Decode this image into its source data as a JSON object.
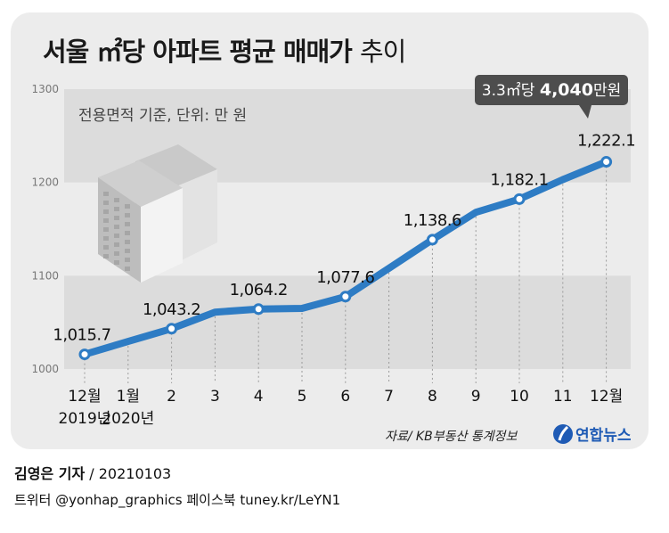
{
  "title": {
    "main": "서울 ㎡당 아파트 평균 매매가",
    "sub": "추이"
  },
  "note": "전용면적 기준, 단위: 만 원",
  "callout": {
    "prefix": "3.3㎡당 ",
    "value": "4,040",
    "suffix": "만원"
  },
  "source": "자료/ KB부동산 통계정보",
  "logo": {
    "text": "연합뉴스",
    "icon": "yonhap-logo-icon"
  },
  "byline": {
    "reporter": "김영은 기자",
    "date": " / 20210103"
  },
  "social": "트위터 @yonhap_graphics  페이스북 tuney.kr/LeYN1",
  "colors": {
    "line": "#2e7cc4",
    "band": "#dcdcdc",
    "panel": "#ececec",
    "callout": "#4d4d4d"
  },
  "chart_data": {
    "type": "line",
    "x": [
      "12월|2019년",
      "1월|2020년",
      "2",
      "3",
      "4",
      "5",
      "6",
      "7",
      "8",
      "9",
      "10",
      "11",
      "12월"
    ],
    "series": [
      {
        "values": [
          1015.7,
          1029.5,
          1043.2,
          1061.0,
          1064.2,
          1065.0,
          1077.6,
          1108.0,
          1138.6,
          1168.0,
          1182.1,
          1203.0,
          1222.1
        ]
      }
    ],
    "point_labels": [
      "1,015.7",
      "",
      "1,043.2",
      "",
      "1,064.2",
      "",
      "1,077.6",
      "",
      "1,138.6",
      "",
      "1,182.1",
      "",
      "1,222.1"
    ],
    "yticks": [
      1000,
      1100,
      1200,
      1300
    ],
    "ylim": [
      1000,
      1300
    ],
    "grid": "alternating bands"
  }
}
